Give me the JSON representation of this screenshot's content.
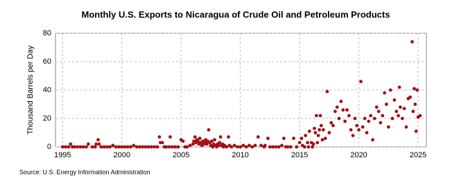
{
  "chart_data": {
    "type": "scatter",
    "title": "Monthly U.S. Exports to Nicaragua of Crude Oil and Petroleum Products",
    "y_label": "Thousand Barrels per Day",
    "source": "Source: U.S. Energy Information Administration",
    "color": "#a50f15",
    "grid": true,
    "xlim": [
      1994.4,
      2025.7
    ],
    "xticks": [
      1995,
      2000,
      2005,
      2010,
      2015,
      2020,
      2025
    ],
    "ylim": [
      0,
      80
    ],
    "yticks": [
      0,
      20,
      40,
      60,
      80
    ],
    "x": [
      1995.0,
      1995.25,
      1995.5,
      1995.67,
      1995.83,
      1996.0,
      1996.25,
      1996.5,
      1996.75,
      1997.0,
      1997.17,
      1997.5,
      1997.75,
      1997.83,
      1998.0,
      1998.08,
      1998.25,
      1998.5,
      1998.75,
      1999.0,
      1999.25,
      1999.5,
      1999.75,
      2000.0,
      2000.25,
      2000.5,
      2000.75,
      2001.0,
      2001.25,
      2001.5,
      2001.75,
      2002.0,
      2002.25,
      2002.5,
      2002.75,
      2003.0,
      2003.17,
      2003.25,
      2003.42,
      2003.58,
      2003.75,
      2004.0,
      2004.08,
      2004.25,
      2004.5,
      2004.75,
      2005.0,
      2005.17,
      2005.33,
      2005.5,
      2005.75,
      2006.0,
      2006.08,
      2006.17,
      2006.25,
      2006.33,
      2006.42,
      2006.5,
      2006.58,
      2006.67,
      2006.75,
      2006.83,
      2006.92,
      2007.0,
      2007.08,
      2007.17,
      2007.25,
      2007.33,
      2007.42,
      2007.5,
      2007.58,
      2007.67,
      2007.75,
      2007.83,
      2007.92,
      2008.0,
      2008.08,
      2008.17,
      2008.25,
      2008.33,
      2008.42,
      2008.5,
      2008.58,
      2008.67,
      2008.83,
      2009.0,
      2009.08,
      2009.25,
      2009.5,
      2009.75,
      2010.0,
      2010.25,
      2010.5,
      2010.75,
      2011.0,
      2011.25,
      2011.5,
      2011.75,
      2012.0,
      2012.08,
      2012.33,
      2012.5,
      2012.75,
      2013.0,
      2013.25,
      2013.5,
      2013.67,
      2013.83,
      2014.0,
      2014.25,
      2014.5,
      2014.75,
      2015.0,
      2015.17,
      2015.25,
      2015.42,
      2015.5,
      2015.67,
      2015.75,
      2015.83,
      2016.0,
      2016.08,
      2016.17,
      2016.25,
      2016.33,
      2016.42,
      2016.5,
      2016.58,
      2016.67,
      2016.75,
      2016.83,
      2016.92,
      2017.0,
      2017.17,
      2017.33,
      2017.5,
      2017.67,
      2017.83,
      2018.0,
      2018.17,
      2018.33,
      2018.5,
      2018.67,
      2018.83,
      2019.0,
      2019.17,
      2019.33,
      2019.5,
      2019.67,
      2019.83,
      2020.0,
      2020.17,
      2020.33,
      2020.5,
      2020.67,
      2020.83,
      2021.0,
      2021.17,
      2021.33,
      2021.5,
      2021.67,
      2021.83,
      2022.0,
      2022.17,
      2022.33,
      2022.5,
      2022.67,
      2022.83,
      2023.0,
      2023.17,
      2023.33,
      2023.42,
      2023.5,
      2023.67,
      2023.83,
      2024.0,
      2024.17,
      2024.33,
      2024.5,
      2024.58,
      2024.67,
      2024.75,
      2024.83,
      2024.92,
      2025.0,
      2025.17
    ],
    "values": [
      0,
      0,
      0,
      2,
      0,
      0,
      0,
      0,
      0,
      0,
      2,
      0,
      0,
      2,
      5,
      2,
      0,
      0,
      0,
      0,
      1,
      0,
      0,
      0,
      0,
      0,
      0,
      1,
      0,
      0,
      0,
      0,
      0,
      0,
      0,
      0,
      7,
      3,
      3,
      0,
      0,
      0,
      7,
      0,
      0,
      0,
      5,
      4,
      0,
      0,
      1,
      2,
      4,
      7,
      3,
      5,
      4,
      2,
      6,
      3,
      1,
      4,
      2,
      3,
      5,
      2,
      4,
      12,
      3,
      1,
      4,
      0,
      2,
      5,
      1,
      0,
      2,
      1,
      3,
      7,
      1,
      2,
      0,
      1,
      0,
      7,
      1,
      0,
      1,
      0,
      0,
      1,
      0,
      1,
      0,
      1,
      7,
      1,
      0,
      1,
      6,
      0,
      0,
      0,
      0,
      1,
      6,
      0,
      0,
      0,
      6,
      0,
      3,
      6,
      1,
      0,
      8,
      3,
      0,
      11,
      3,
      0,
      2,
      13,
      10,
      22,
      3,
      8,
      12,
      22,
      15,
      5,
      12,
      6,
      39,
      10,
      17,
      15,
      25,
      28,
      20,
      32,
      26,
      18,
      26,
      22,
      12,
      8,
      20,
      15,
      12,
      46,
      14,
      20,
      10,
      18,
      22,
      5,
      20,
      28,
      25,
      17,
      22,
      38,
      30,
      14,
      40,
      20,
      33,
      25,
      22,
      42,
      28,
      20,
      27,
      14,
      34,
      35,
      74,
      25,
      41,
      30,
      11,
      40,
      21,
      22
    ]
  }
}
